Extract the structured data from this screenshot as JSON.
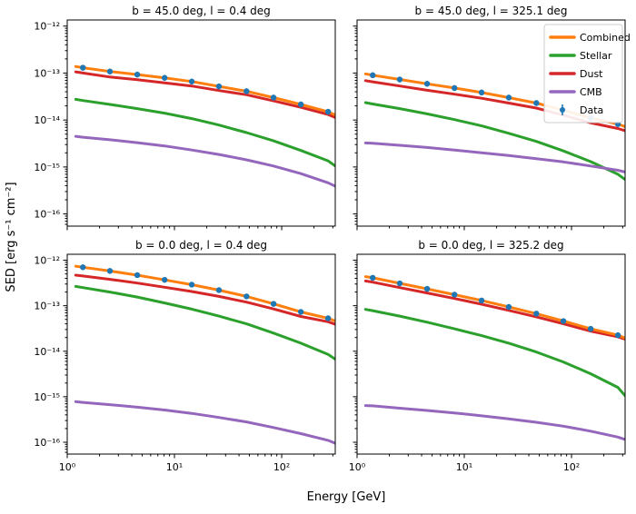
{
  "figure": {
    "background": "#ffffff"
  },
  "axes": {
    "x_label": "Energy [GeV]",
    "y_label": "SED [erg s⁻¹ cm⁻²]",
    "x_tick_labels": [
      "10⁰",
      "10¹",
      "10²"
    ],
    "x_tick_values": [
      1,
      10,
      100
    ],
    "y_tick_labels": [
      "10⁻¹²",
      "10⁻¹³",
      "10⁻¹⁴",
      "10⁻¹⁵",
      "10⁻¹⁶"
    ],
    "y_tick_values": [
      1e-12,
      1e-13,
      1e-14,
      1e-15,
      1e-16
    ]
  },
  "legend": {
    "entries": [
      {
        "label": "Combined",
        "color": "#ff7f0e",
        "glyph": "line"
      },
      {
        "label": "Stellar",
        "color": "#2ca02c",
        "glyph": "line"
      },
      {
        "label": "Dust",
        "color": "#d62728",
        "glyph": "line"
      },
      {
        "label": "CMB",
        "color": "#9467bd",
        "glyph": "line"
      },
      {
        "label": "Data",
        "color": "#1f77b4",
        "glyph": "errorbar"
      }
    ]
  },
  "chart_data": [
    {
      "id": "top-left",
      "type": "line",
      "title": "b = 45.0 deg, l = 0.4 deg",
      "xscale": "log",
      "yscale": "log",
      "xlim": [
        1,
        316
      ],
      "ylim": [
        5.5e-17,
        1.35e-12
      ],
      "curve_x": [
        1.2,
        1.4,
        2.5,
        4.5,
        8.1,
        14.5,
        26,
        47,
        84,
        151,
        271,
        316
      ],
      "series": [
        {
          "name": "Combined",
          "color": "#ff7f0e",
          "y": [
            1.38e-13,
            1.3e-13,
            1.08e-13,
            9.3e-14,
            7.9e-14,
            6.6e-14,
            5.2e-14,
            4.1e-14,
            3e-14,
            2.15e-14,
            1.5e-14,
            1.28e-14
          ]
        },
        {
          "name": "Stellar",
          "color": "#2ca02c",
          "y": [
            2.75e-14,
            2.6e-14,
            2.15e-14,
            1.75e-14,
            1.4e-14,
            1.07e-14,
            7.8e-15,
            5.4e-15,
            3.6e-15,
            2.25e-15,
            1.35e-15,
            1.05e-15
          ]
        },
        {
          "name": "Dust",
          "color": "#d62728",
          "y": [
            1.06e-13,
            1e-13,
            8.25e-14,
            7.2e-14,
            6.2e-14,
            5.3e-14,
            4.25e-14,
            3.45e-14,
            2.55e-14,
            1.86e-14,
            1.31e-14,
            1.13e-14
          ]
        },
        {
          "name": "CMB",
          "color": "#9467bd",
          "y": [
            4.5e-15,
            4.3e-15,
            3.8e-15,
            3.3e-15,
            2.8e-15,
            2.3e-15,
            1.85e-15,
            1.42e-15,
            1.05e-15,
            7.2e-16,
            4.6e-16,
            3.9e-16
          ]
        }
      ],
      "data_points": {
        "color": "#1f77b4",
        "yerr_frac": 0.15,
        "x": [
          1.4,
          2.5,
          4.5,
          8.1,
          14.5,
          26,
          47,
          84,
          151,
          271
        ],
        "y": [
          1.3e-13,
          1.08e-13,
          9.3e-14,
          7.9e-14,
          6.6e-14,
          5.2e-14,
          4.1e-14,
          3e-14,
          2.15e-14,
          1.5e-14
        ]
      }
    },
    {
      "id": "top-right",
      "type": "line",
      "title": "b = 45.0 deg, l = 325.1 deg",
      "xscale": "log",
      "yscale": "log",
      "xlim": [
        1,
        316
      ],
      "ylim": [
        5.5e-17,
        1.35e-12
      ],
      "curve_x": [
        1.2,
        1.4,
        2.5,
        4.5,
        8.1,
        14.5,
        26,
        47,
        84,
        151,
        271,
        316
      ],
      "series": [
        {
          "name": "Combined",
          "color": "#ff7f0e",
          "y": [
            9.6e-14,
            9e-14,
            7.3e-14,
            5.9e-14,
            4.8e-14,
            3.85e-14,
            3e-14,
            2.3e-14,
            1.62e-14,
            1.1e-14,
            8.2e-15,
            7.2e-15
          ]
        },
        {
          "name": "Stellar",
          "color": "#2ca02c",
          "y": [
            2.35e-14,
            2.2e-14,
            1.75e-14,
            1.35e-14,
            1.02e-14,
            7.5e-15,
            5.2e-15,
            3.5e-15,
            2.2e-15,
            1.3e-15,
            7e-16,
            5.4e-16
          ]
        },
        {
          "name": "Dust",
          "color": "#d62728",
          "y": [
            6.9e-14,
            6.5e-14,
            5.3e-14,
            4.3e-14,
            3.55e-14,
            2.9e-14,
            2.3e-14,
            1.8e-14,
            1.27e-14,
            8.7e-15,
            6.6e-15,
            5.9e-15
          ]
        },
        {
          "name": "CMB",
          "color": "#9467bd",
          "y": [
            3.25e-15,
            3.2e-15,
            2.9e-15,
            2.6e-15,
            2.3e-15,
            2e-15,
            1.75e-15,
            1.5e-15,
            1.28e-15,
            1.05e-15,
            8.5e-16,
            7.8e-16
          ]
        }
      ],
      "data_points": {
        "color": "#1f77b4",
        "yerr_frac": 0.15,
        "x": [
          1.4,
          2.5,
          4.5,
          8.1,
          14.5,
          26,
          47,
          84,
          151,
          271
        ],
        "y": [
          9e-14,
          7.3e-14,
          5.9e-14,
          4.8e-14,
          3.85e-14,
          3e-14,
          2.3e-14,
          1.62e-14,
          1.1e-14,
          8.2e-15
        ]
      }
    },
    {
      "id": "bottom-left",
      "type": "line",
      "title": "b = 0.0 deg, l = 0.4 deg",
      "xscale": "log",
      "yscale": "log",
      "xlim": [
        1,
        316
      ],
      "ylim": [
        5.5e-17,
        1.35e-12
      ],
      "curve_x": [
        1.2,
        1.4,
        2.5,
        4.5,
        8.1,
        14.5,
        26,
        47,
        84,
        151,
        271,
        316
      ],
      "series": [
        {
          "name": "Combined",
          "color": "#ff7f0e",
          "y": [
            7.4e-13,
            7e-13,
            5.8e-13,
            4.7e-13,
            3.7e-13,
            2.9e-13,
            2.2e-13,
            1.6e-13,
            1.1e-13,
            7.3e-14,
            5.3e-14,
            4.6e-14
          ]
        },
        {
          "name": "Stellar",
          "color": "#2ca02c",
          "y": [
            2.65e-13,
            2.5e-13,
            2e-13,
            1.55e-13,
            1.15e-13,
            8.4e-14,
            5.9e-14,
            4e-14,
            2.5e-14,
            1.5e-14,
            8.5e-15,
            6.7e-15
          ]
        },
        {
          "name": "Dust",
          "color": "#d62728",
          "y": [
            4.7e-13,
            4.5e-13,
            3.8e-13,
            3.15e-13,
            2.55e-13,
            2.05e-13,
            1.6e-13,
            1.2e-13,
            8.5e-14,
            5.8e-14,
            4.45e-14,
            3.9e-14
          ]
        },
        {
          "name": "CMB",
          "color": "#9467bd",
          "y": [
            7.8e-16,
            7.5e-16,
            6.7e-16,
            5.9e-16,
            5.1e-16,
            4.3e-16,
            3.5e-16,
            2.8e-16,
            2.1e-16,
            1.55e-16,
            1.1e-16,
            9.5e-17
          ]
        }
      ],
      "data_points": {
        "color": "#1f77b4",
        "yerr_frac": 0.15,
        "x": [
          1.4,
          2.5,
          4.5,
          8.1,
          14.5,
          26,
          47,
          84,
          151,
          271
        ],
        "y": [
          7e-13,
          5.8e-13,
          4.7e-13,
          3.7e-13,
          2.9e-13,
          2.2e-13,
          1.6e-13,
          1.1e-13,
          7.3e-14,
          5.3e-14
        ]
      }
    },
    {
      "id": "bottom-right",
      "type": "line",
      "title": "b = 0.0 deg, l = 325.2 deg",
      "xscale": "log",
      "yscale": "log",
      "xlim": [
        1,
        316
      ],
      "ylim": [
        5.5e-17,
        1.35e-12
      ],
      "curve_x": [
        1.2,
        1.4,
        2.5,
        4.5,
        8.1,
        14.5,
        26,
        47,
        84,
        151,
        271,
        316
      ],
      "series": [
        {
          "name": "Combined",
          "color": "#ff7f0e",
          "y": [
            4.35e-13,
            4.1e-13,
            3.1e-13,
            2.35e-13,
            1.75e-13,
            1.3e-13,
            9.4e-14,
            6.7e-14,
            4.6e-14,
            3.1e-14,
            2.25e-14,
            1.95e-14
          ]
        },
        {
          "name": "Stellar",
          "color": "#2ca02c",
          "y": [
            8.3e-14,
            7.8e-14,
            5.9e-14,
            4.35e-14,
            3.1e-14,
            2.2e-14,
            1.5e-14,
            9.6e-15,
            5.8e-15,
            3.2e-15,
            1.6e-15,
            1.05e-15
          ]
        },
        {
          "name": "Dust",
          "color": "#d62728",
          "y": [
            3.5e-13,
            3.3e-13,
            2.5e-13,
            1.91e-13,
            1.44e-13,
            1.08e-13,
            7.9e-14,
            5.7e-14,
            4e-14,
            2.75e-14,
            2.07e-14,
            1.84e-14
          ]
        },
        {
          "name": "CMB",
          "color": "#9467bd",
          "y": [
            6.4e-16,
            6.3e-16,
            5.6e-16,
            5e-16,
            4.4e-16,
            3.8e-16,
            3.25e-16,
            2.75e-16,
            2.25e-16,
            1.75e-16,
            1.3e-16,
            1.15e-16
          ]
        }
      ],
      "data_points": {
        "color": "#1f77b4",
        "yerr_frac": 0.15,
        "x": [
          1.4,
          2.5,
          4.5,
          8.1,
          14.5,
          26,
          47,
          84,
          151,
          271
        ],
        "y": [
          4.1e-13,
          3.1e-13,
          2.35e-13,
          1.75e-13,
          1.3e-13,
          9.4e-14,
          6.7e-14,
          4.6e-14,
          3.1e-14,
          2.25e-14
        ]
      }
    }
  ]
}
